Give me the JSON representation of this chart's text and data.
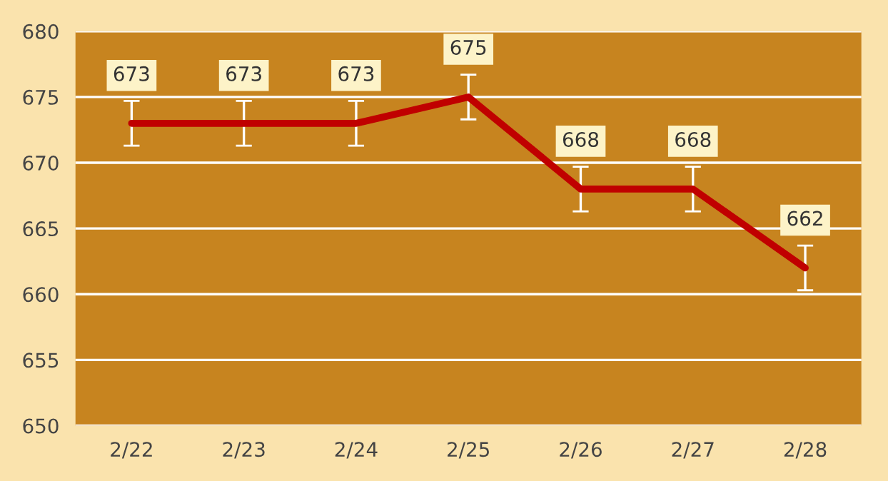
{
  "chart_data": {
    "type": "line",
    "categories": [
      "2/22",
      "2/23",
      "2/24",
      "2/25",
      "2/26",
      "2/27",
      "2/28"
    ],
    "series": [
      {
        "color": "#c00000",
        "values": [
          673,
          673,
          673,
          675,
          668,
          668,
          662
        ],
        "errors": [
          1.7,
          1.7,
          1.7,
          1.7,
          1.7,
          1.7,
          1.7
        ]
      }
    ],
    "ylim": [
      650,
      680
    ],
    "yticks": [
      650,
      655,
      660,
      665,
      670,
      675,
      680
    ],
    "grid": "y",
    "data_labels": true,
    "marker": "none",
    "line_style": "solid"
  }
}
